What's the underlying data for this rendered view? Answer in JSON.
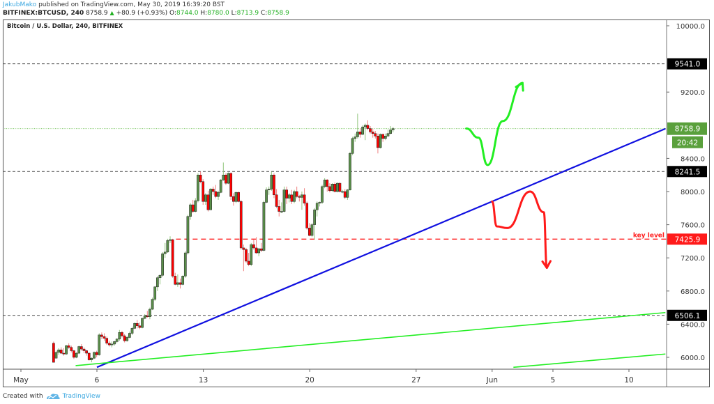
{
  "header": {
    "author": "JakubMako",
    "published_text": "published on TradingView.com, May 30, 2019 16:39:20 BST",
    "symbol": "BITFINEX:BTCUSD, 240",
    "last": "8758.9",
    "change": "+80.9 (+0.93%)",
    "o_label": "O:",
    "o": "8744.0",
    "h_label": "H:",
    "h": "8780.0",
    "l_label": "L:",
    "l": "8713.9",
    "c_label": "C:",
    "c": "8758.9"
  },
  "footer": {
    "created_with": "Created with",
    "brand": "TradingView"
  },
  "chart_data": {
    "type": "candlestick",
    "title": "Bitcoin / U.S. Dollar, 240, BITFINEX",
    "xlabel": "",
    "ylabel": "",
    "ylim": [
      5880,
      10150
    ],
    "y_ticks": [
      6000,
      6400,
      6800,
      7200,
      7600,
      8000,
      8400,
      9200,
      10000
    ],
    "y_tick_labels": [
      "6000.0",
      "6400.0",
      "6800.0",
      "7200.0",
      "7600.0",
      "8000.0",
      "8400.0",
      "9200.0",
      "10000.0"
    ],
    "x_ticks": [
      {
        "label": "May",
        "day": 1
      },
      {
        "label": "6",
        "day": 6
      },
      {
        "label": "13",
        "day": 13
      },
      {
        "label": "20",
        "day": 20
      },
      {
        "label": "27",
        "day": 27
      },
      {
        "label": "Jun",
        "day": 32
      },
      {
        "label": "5",
        "day": 36
      },
      {
        "label": "10",
        "day": 41
      }
    ],
    "grid": false,
    "horizontal_levels": [
      {
        "price": 9541.0,
        "label": "9541.0",
        "style": "dashed",
        "color": "#444444",
        "tag_bg": "#000000"
      },
      {
        "price": 8241.5,
        "label": "8241.5",
        "style": "dashed",
        "color": "#444444",
        "tag_bg": "#000000"
      },
      {
        "price": 7425.9,
        "label": "7425.9",
        "style": "dashed",
        "color": "#ff2020",
        "tag_bg": "#ff1a1a",
        "annotation": "key level",
        "start_day": 11.2
      },
      {
        "price": 6506.1,
        "label": "6506.1",
        "style": "dashed",
        "color": "#444444",
        "tag_bg": "#000000"
      }
    ],
    "last_price": {
      "price": 8758.9,
      "label": "8758.9",
      "countdown": "20:42",
      "color": "#5aa03c"
    },
    "trendlines": [
      {
        "name": "blue-support",
        "color": "#1010e0",
        "from": {
          "day": 6.0,
          "price": 5880
        },
        "to": {
          "day": 43.4,
          "price": 8758
        }
      },
      {
        "name": "green-lower-1",
        "color": "#22ee22",
        "from": {
          "day": 4.6,
          "price": 5900
        },
        "to": {
          "day": 43.4,
          "price": 6540
        }
      },
      {
        "name": "green-lower-2",
        "color": "#22ee22",
        "from": {
          "day": 33.4,
          "price": 5880
        },
        "to": {
          "day": 43.4,
          "price": 6040
        }
      }
    ],
    "projections": [
      {
        "name": "bullish-path",
        "color": "#22ee22",
        "points": [
          [
            30.3,
            8760
          ],
          [
            31.1,
            8650
          ],
          [
            31.7,
            8320
          ],
          [
            32.7,
            8850
          ],
          [
            34.0,
            9310
          ]
        ],
        "arrow": true
      },
      {
        "name": "bearish-path",
        "color": "#ff1a1a",
        "points": [
          [
            32.0,
            7880
          ],
          [
            32.3,
            7580
          ],
          [
            33.0,
            7560
          ],
          [
            34.5,
            8000
          ],
          [
            35.4,
            7750
          ],
          [
            35.6,
            7080
          ]
        ],
        "arrow": true
      }
    ],
    "candles_per_day": 6,
    "candles": [
      [
        6170,
        6190,
        5990,
        5940
      ],
      [
        5990,
        6080,
        6020,
        6060
      ],
      [
        6060,
        6110,
        6030,
        6090
      ],
      [
        6090,
        6120,
        6040,
        6050
      ],
      [
        6050,
        6110,
        6020,
        6040
      ],
      [
        6040,
        6150,
        6030,
        6140
      ],
      [
        6140,
        6170,
        6100,
        6120
      ],
      [
        6120,
        6140,
        6060,
        6080
      ],
      [
        6080,
        6090,
        5980,
        6000
      ],
      [
        6000,
        6060,
        5990,
        6050
      ],
      [
        6050,
        6140,
        6040,
        6130
      ],
      [
        6130,
        6160,
        6080,
        6100
      ],
      [
        6100,
        6120,
        6050,
        6080
      ],
      [
        6080,
        6090,
        6020,
        6050
      ],
      [
        6050,
        6060,
        5960,
        5970
      ],
      [
        5970,
        6000,
        5940,
        5990
      ],
      [
        5990,
        6070,
        5980,
        6060
      ],
      [
        6060,
        6080,
        6000,
        6030
      ],
      [
        6030,
        6290,
        6020,
        6270
      ],
      [
        6270,
        6300,
        6220,
        6250
      ],
      [
        6250,
        6290,
        6200,
        6230
      ],
      [
        6230,
        6250,
        6150,
        6170
      ],
      [
        6170,
        6200,
        6130,
        6150
      ],
      [
        6150,
        6190,
        6120,
        6160
      ],
      [
        6160,
        6200,
        6140,
        6190
      ],
      [
        6190,
        6230,
        6170,
        6220
      ],
      [
        6220,
        6330,
        6200,
        6300
      ],
      [
        6300,
        6320,
        6240,
        6260
      ],
      [
        6260,
        6280,
        6180,
        6200
      ],
      [
        6200,
        6260,
        6190,
        6240
      ],
      [
        6240,
        6310,
        6230,
        6290
      ],
      [
        6290,
        6370,
        6270,
        6350
      ],
      [
        6350,
        6420,
        6340,
        6410
      ],
      [
        6410,
        6450,
        6350,
        6380
      ],
      [
        6380,
        6420,
        6340,
        6360
      ],
      [
        6360,
        6480,
        6350,
        6470
      ],
      [
        6470,
        6520,
        6460,
        6500
      ],
      [
        6500,
        6560,
        6480,
        6490
      ],
      [
        6490,
        6600,
        6460,
        6580
      ],
      [
        6580,
        6720,
        6570,
        6700
      ],
      [
        6700,
        6860,
        6680,
        6850
      ],
      [
        6850,
        6980,
        6800,
        6960
      ],
      [
        6960,
        7000,
        6880,
        6990
      ],
      [
        6990,
        7270,
        6970,
        7250
      ],
      [
        7250,
        7380,
        7200,
        7270
      ],
      [
        7270,
        7430,
        7260,
        7410
      ],
      [
        7410,
        7460,
        7380,
        7420
      ],
      [
        7420,
        7430,
        6960,
        6980
      ],
      [
        6980,
        7020,
        6870,
        6880
      ],
      [
        6880,
        7000,
        6850,
        6900
      ],
      [
        6900,
        6950,
        6830,
        6880
      ],
      [
        6880,
        6990,
        6870,
        6980
      ],
      [
        6980,
        7280,
        6960,
        7260
      ],
      [
        7260,
        7720,
        7240,
        7700
      ],
      [
        7700,
        7860,
        7660,
        7840
      ],
      [
        7840,
        7900,
        7740,
        7760
      ],
      [
        7760,
        7920,
        7750,
        7890
      ],
      [
        7890,
        8220,
        7870,
        8200
      ],
      [
        8200,
        8240,
        8100,
        8120
      ],
      [
        8120,
        8150,
        7840,
        7880
      ],
      [
        7880,
        7980,
        7840,
        7960
      ],
      [
        7960,
        8010,
        7760,
        7780
      ],
      [
        7780,
        8040,
        7780,
        8030
      ],
      [
        8030,
        8060,
        7960,
        8000
      ],
      [
        8000,
        8080,
        7920,
        7940
      ],
      [
        7940,
        8010,
        7900,
        7990
      ],
      [
        7990,
        8150,
        7980,
        8140
      ],
      [
        8140,
        8350,
        8130,
        8200
      ],
      [
        8200,
        8220,
        8080,
        8100
      ],
      [
        8100,
        8230,
        8090,
        8220
      ],
      [
        8220,
        8230,
        7900,
        7940
      ],
      [
        7940,
        7980,
        7830,
        7880
      ],
      [
        7880,
        8000,
        7860,
        7990
      ],
      [
        7990,
        8000,
        7870,
        7880
      ],
      [
        7880,
        7900,
        7300,
        7320
      ],
      [
        7320,
        7360,
        7040,
        7300
      ],
      [
        7300,
        7320,
        7140,
        7160
      ],
      [
        7160,
        7260,
        7100,
        7120
      ],
      [
        7120,
        7380,
        7100,
        7360
      ],
      [
        7360,
        7420,
        7300,
        7320
      ],
      [
        7320,
        7450,
        7250,
        7260
      ],
      [
        7260,
        7320,
        7220,
        7310
      ],
      [
        7310,
        7380,
        7270,
        7290
      ],
      [
        7290,
        7890,
        7280,
        7870
      ],
      [
        7870,
        8050,
        7860,
        8020
      ],
      [
        8020,
        8060,
        7960,
        8030
      ],
      [
        8030,
        8240,
        8010,
        8200
      ],
      [
        8200,
        8220,
        7920,
        7960
      ],
      [
        7960,
        8030,
        7800,
        7820
      ],
      [
        7820,
        7900,
        7700,
        7760
      ],
      [
        7760,
        7870,
        7740,
        7760
      ],
      [
        7760,
        8060,
        7750,
        8020
      ],
      [
        8020,
        8060,
        7850,
        7920
      ],
      [
        7920,
        7980,
        7870,
        7960
      ],
      [
        7960,
        8020,
        7850,
        7880
      ],
      [
        7880,
        8020,
        7860,
        8000
      ],
      [
        8000,
        8060,
        7920,
        7940
      ],
      [
        7940,
        7960,
        7880,
        7930
      ],
      [
        7930,
        8000,
        7780,
        7960
      ],
      [
        7960,
        8040,
        7830,
        7860
      ],
      [
        7860,
        7880,
        7540,
        7560
      ],
      [
        7560,
        7620,
        7460,
        7470
      ],
      [
        7470,
        7620,
        7450,
        7600
      ],
      [
        7600,
        7800,
        7420,
        7780
      ],
      [
        7780,
        7880,
        7700,
        7860
      ],
      [
        7860,
        7880,
        7820,
        7870
      ],
      [
        7870,
        8080,
        7850,
        8060
      ],
      [
        8060,
        8160,
        8040,
        8140
      ],
      [
        8140,
        8150,
        8000,
        8060
      ],
      [
        8060,
        8100,
        7990,
        8010
      ],
      [
        8010,
        8100,
        8000,
        8090
      ],
      [
        8090,
        8110,
        7990,
        8000
      ],
      [
        8000,
        8110,
        7990,
        8100
      ],
      [
        8100,
        8110,
        7990,
        8000
      ],
      [
        8000,
        8020,
        7980,
        8000
      ],
      [
        8000,
        8030,
        7910,
        7930
      ],
      [
        7930,
        8030,
        7900,
        8020
      ],
      [
        8020,
        8480,
        8010,
        8460
      ],
      [
        8460,
        8660,
        8440,
        8640
      ],
      [
        8640,
        8700,
        8600,
        8660
      ],
      [
        8660,
        8940,
        8640,
        8720
      ],
      [
        8720,
        8760,
        8650,
        8690
      ],
      [
        8690,
        8800,
        8680,
        8780
      ],
      [
        8780,
        8820,
        8620,
        8800
      ],
      [
        8800,
        8860,
        8740,
        8760
      ],
      [
        8760,
        8790,
        8700,
        8720
      ],
      [
        8720,
        8760,
        8650,
        8700
      ],
      [
        8700,
        8730,
        8640,
        8670
      ],
      [
        8670,
        8700,
        8460,
        8530
      ],
      [
        8530,
        8700,
        8520,
        8690
      ],
      [
        8690,
        8700,
        8600,
        8640
      ],
      [
        8640,
        8700,
        8620,
        8670
      ],
      [
        8670,
        8750,
        8660,
        8700
      ],
      [
        8700,
        8790,
        8690,
        8744
      ],
      [
        8744,
        8780,
        8714,
        8759
      ]
    ]
  }
}
